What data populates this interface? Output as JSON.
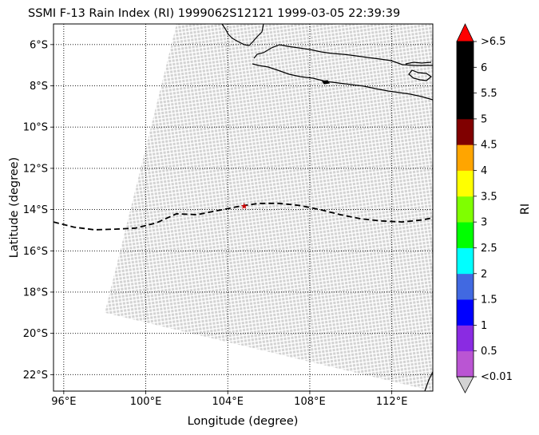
{
  "title": "SSMI F-13 Rain Index (RI) 1999062S12121 1999-03-05 22:39:39",
  "x_axis_label": "Longitude (degree)",
  "y_axis_label": "Latitude (degree)",
  "x_tick_labels": [
    "96°E",
    "100°E",
    "104°E",
    "108°E",
    "112°E"
  ],
  "y_tick_labels": [
    "6°S",
    "8°S",
    "10°S",
    "12°S",
    "14°S",
    "16°S",
    "18°S",
    "20°S",
    "22°S"
  ],
  "colorbar": {
    "label": "RI",
    "over_label": ">6.5",
    "under_label": "<0.01",
    "tick_labels": [
      "0.5",
      "1",
      "1.5",
      "2",
      "2.5",
      "3",
      "3.5",
      "4",
      "4.5",
      "5",
      "5.5",
      "6"
    ],
    "over_color": "#ff0000",
    "under_color": "#d3d3d3",
    "bin_colors": [
      "#ba55d3",
      "#8a2be2",
      "#0000ff",
      "#4169e1",
      "#00ffff",
      "#00ff00",
      "#7fff00",
      "#ffff00",
      "#ffa500",
      "#800000",
      "#000000",
      "#000000",
      "#000000"
    ]
  },
  "swath_color": "#d3d3d3",
  "storm_marker_color": "#cc0000",
  "chart_data": {
    "type": "map",
    "xlim": [
      95.5,
      114
    ],
    "ylim": [
      -22.8,
      -5
    ],
    "grid": true,
    "x_ticks": [
      96,
      100,
      104,
      108,
      112
    ],
    "y_ticks": [
      -6,
      -8,
      -10,
      -12,
      -14,
      -16,
      -18,
      -20,
      -22
    ],
    "storm_track": {
      "lon": [
        95.5,
        96.5,
        97.5,
        98.5,
        99.5,
        100.5,
        101.5,
        102.5,
        103.5,
        104.5,
        105.5,
        106.5,
        107.5,
        108.5,
        109.5,
        110.5,
        111.5,
        112.5,
        113.5,
        114
      ],
      "lat": [
        -14.6,
        -14.85,
        -14.98,
        -14.95,
        -14.9,
        -14.65,
        -14.2,
        -14.25,
        -14.05,
        -13.85,
        -13.7,
        -13.7,
        -13.8,
        -14.0,
        -14.25,
        -14.45,
        -14.55,
        -14.6,
        -14.5,
        -14.4
      ]
    },
    "storm_position": {
      "lon": 104.8,
      "lat": -13.85
    },
    "swath": {
      "upper_left": [
        101.5,
        -5
      ],
      "upper_right": [
        114,
        -5
      ],
      "lower_left": [
        98,
        -19
      ],
      "lower_right": [
        114,
        -22.8
      ],
      "rain_index_value": "<0.01"
    }
  }
}
